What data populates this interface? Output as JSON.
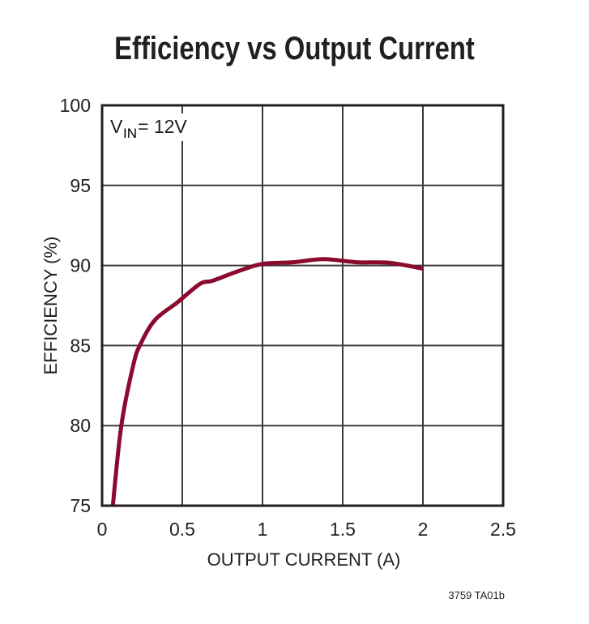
{
  "chart_data": {
    "type": "line",
    "title": "Efficiency vs Output Current",
    "xlabel": "OUTPUT CURRENT (A)",
    "ylabel": "EFFICIENCY (%)",
    "xlim": [
      0,
      2.5
    ],
    "ylim": [
      75,
      100
    ],
    "xticks": [
      "0",
      "0.5",
      "1",
      "1.5",
      "2",
      "2.5"
    ],
    "yticks": [
      "75",
      "80",
      "85",
      "90",
      "95",
      "100"
    ],
    "grid": true,
    "annotation": {
      "main": "V",
      "sub": "IN",
      "rest": " = 12V"
    },
    "series": [
      {
        "color": "#8b0a2e",
        "x": [
          0.067,
          0.12,
          0.195,
          0.24,
          0.33,
          0.47,
          0.61,
          0.69,
          0.85,
          1.0,
          1.19,
          1.38,
          1.59,
          1.79,
          2.0
        ],
        "y": [
          75,
          80,
          83.8,
          85.1,
          86.6,
          87.7,
          88.85,
          89.05,
          89.65,
          90.1,
          90.2,
          90.4,
          90.2,
          90.17,
          89.8
        ]
      }
    ],
    "footnote": "3759 TA01b"
  }
}
